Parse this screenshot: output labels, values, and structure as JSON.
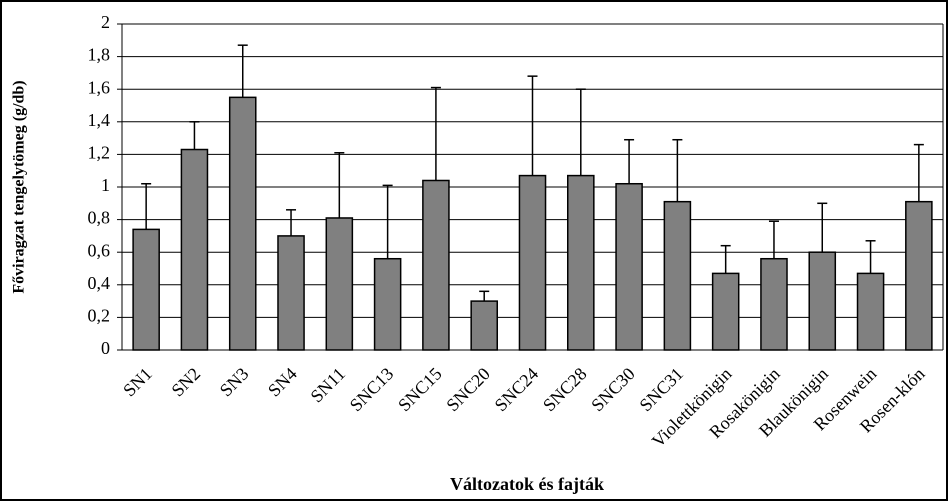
{
  "chart_data": {
    "type": "bar",
    "y_label": "Főviragzat tengelytömeg (g/db)",
    "x_label": "Változatok és fajták",
    "categories": [
      "SN1",
      "SN2",
      "SN3",
      "SN4",
      "SN11",
      "SNC13",
      "SNC15",
      "SNC20",
      "SNC24",
      "SNC28",
      "SNC30",
      "SNC31",
      "Violettkönigin",
      "Rosakönigin",
      "Blaukönigin",
      "Rosenwein",
      "Rosen-klón"
    ],
    "values": [
      0.74,
      1.23,
      1.55,
      0.7,
      0.81,
      0.56,
      1.04,
      0.3,
      1.07,
      1.07,
      1.02,
      0.91,
      0.47,
      0.56,
      0.6,
      0.47,
      0.91
    ],
    "errors": [
      0.28,
      0.17,
      0.32,
      0.16,
      0.4,
      0.45,
      0.57,
      0.06,
      0.61,
      0.53,
      0.27,
      0.38,
      0.17,
      0.23,
      0.3,
      0.2,
      0.35
    ],
    "color": "#808080",
    "ylim": [
      0,
      2
    ],
    "yticks": [
      0,
      {
        "value": 0.2,
        "label": "0,2"
      },
      {
        "value": 0.4,
        "label": "0,4"
      },
      {
        "value": 0.6,
        "label": "0,6"
      },
      {
        "value": 0.8,
        "label": "0,8"
      },
      1,
      {
        "value": 1.2,
        "label": "1,2"
      },
      {
        "value": 1.4,
        "label": "1,4"
      },
      {
        "value": 1.6,
        "label": "1,6"
      },
      {
        "value": 1.8,
        "label": "1,8"
      },
      2
    ],
    "grid": true
  }
}
